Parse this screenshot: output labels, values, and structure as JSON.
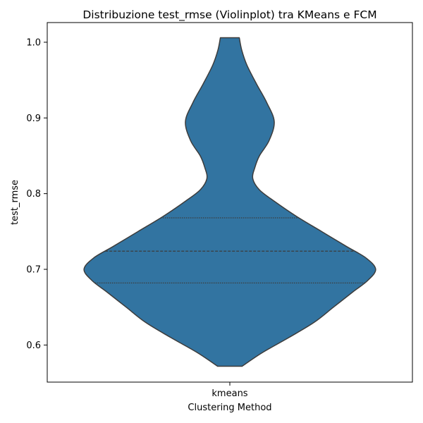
{
  "chart_data": {
    "type": "violin",
    "title": "Distribuzione test_rmse (Violinplot) tra KMeans e FCM",
    "xlabel": "Clustering Method",
    "ylabel": "test_rmse",
    "categories": [
      "kmeans"
    ],
    "ylim": [
      0.551,
      1.026
    ],
    "yticks": [
      0.6,
      0.7,
      0.8,
      0.9,
      1.0
    ],
    "ytick_labels": [
      "0.6",
      "0.7",
      "0.8",
      "0.9",
      "1.0"
    ],
    "grid": false,
    "color": "#3274a1",
    "edge_color": "#3c3c3c",
    "violins": [
      {
        "category": "kmeans",
        "min": 0.572,
        "max": 1.006,
        "quartiles": [
          0.682,
          0.724,
          0.768
        ],
        "density_profile": [
          [
            0.572,
            0.083
          ],
          [
            0.59,
            0.22
          ],
          [
            0.61,
            0.4
          ],
          [
            0.63,
            0.57
          ],
          [
            0.65,
            0.7
          ],
          [
            0.67,
            0.83
          ],
          [
            0.685,
            0.93
          ],
          [
            0.7,
            0.985
          ],
          [
            0.715,
            0.92
          ],
          [
            0.73,
            0.79
          ],
          [
            0.75,
            0.62
          ],
          [
            0.77,
            0.45
          ],
          [
            0.79,
            0.3
          ],
          [
            0.805,
            0.2
          ],
          [
            0.82,
            0.155
          ],
          [
            0.835,
            0.17
          ],
          [
            0.85,
            0.2
          ],
          [
            0.87,
            0.265
          ],
          [
            0.895,
            0.3
          ],
          [
            0.92,
            0.25
          ],
          [
            0.945,
            0.18
          ],
          [
            0.97,
            0.115
          ],
          [
            0.99,
            0.08
          ],
          [
            1.006,
            0.064
          ]
        ]
      }
    ]
  }
}
